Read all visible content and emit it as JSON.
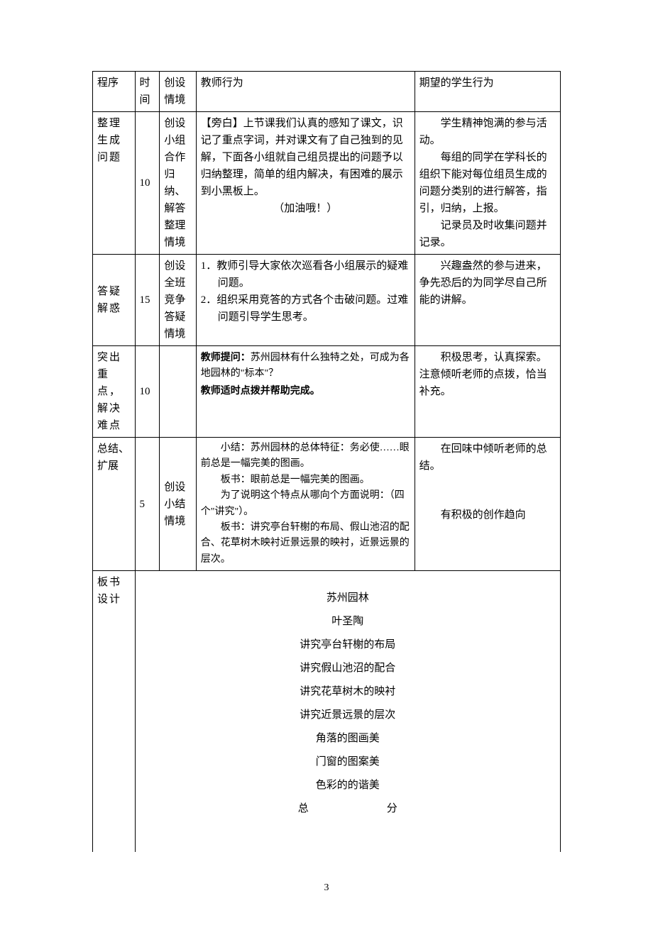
{
  "header": {
    "c1": "程序",
    "c2": "时间",
    "c3": "创设情境",
    "c4": "教师行为",
    "c5": "期望的学生行为"
  },
  "rows": {
    "r1": {
      "prog": "整理生成问题",
      "time": "10",
      "ctx": "创设小组合作归纳、解答整理情境",
      "tch": "【旁白】上节课我们认真的感知了课文，识记了重点字词，并对课文有了自己独到的见解，下面各小组就自己组员提出的问题予以归纳整理，简单的组内解决，有困难的展示到小黑板上。",
      "tch_extra": "（加油哦！）",
      "stu_p1": "学生精神饱满的参与活动。",
      "stu_p2": "每组的同学在学科长的组织下能对每位组员生成的问题分类别的进行解答，指引，归纳，上报。",
      "stu_p3": "记录员及时收集问题并记录。"
    },
    "r2": {
      "prog": "答疑解惑",
      "time": "15",
      "ctx": "创设全班竞争答疑情境",
      "tch_li1": "1．教师引导大家依次巡看各小组展示的疑难问题。",
      "tch_li2": "2．组织采用竞答的方式各个击破问题。过难问题引导学生思考。",
      "stu": "兴趣盎然的参与进来，争先恐后的为同学尽自己所能的讲解。"
    },
    "r3": {
      "prog": "突出重点，解决难点",
      "time": "10",
      "ctx": "",
      "tch_q_label": "教师提问：",
      "tch_q": "苏州园林有什么独特之处，可成为各地园林的\"标本\"？",
      "tch_h": "教师适时点拨并帮助完成。",
      "stu_p1": "积极思考，认真探索。",
      "stu_p2": "注意倾听老师的点拨，恰当补充。"
    },
    "r4": {
      "prog": "总结、扩展",
      "time": "5",
      "ctx": "创设小结情境",
      "tch_l1": "小结：苏州园林的总体特征：务必使……眼前总是一幅完美的图画。",
      "tch_l2": "板书：眼前总是一幅完美的图画。",
      "tch_l3": "为了说明这个特点从哪向个方面说明：（四个\"讲究\"）。",
      "tch_l4": "板书：讲究亭台轩榭的布局、假山池沼的配合、花草树木映衬近景远景的映衬，近景远景的层次。",
      "stu_p1": "在回味中倾听老师的总结。",
      "stu_p2": "有积极的创作趋向"
    },
    "r5": {
      "prog": "板书设计",
      "board": {
        "l1": "苏州园林",
        "l2": "叶圣陶",
        "l3": "讲究亭台轩榭的布局",
        "l4": "讲究假山池沼的配合",
        "l5": "讲究花草树木的映衬",
        "l6": "讲究近景远景的层次",
        "l7": "角落的图画美",
        "l8": "门窗的图案美",
        "l9": "色彩的的谐美",
        "l10a": "总",
        "l10b": "分"
      }
    }
  },
  "page_number": "3"
}
